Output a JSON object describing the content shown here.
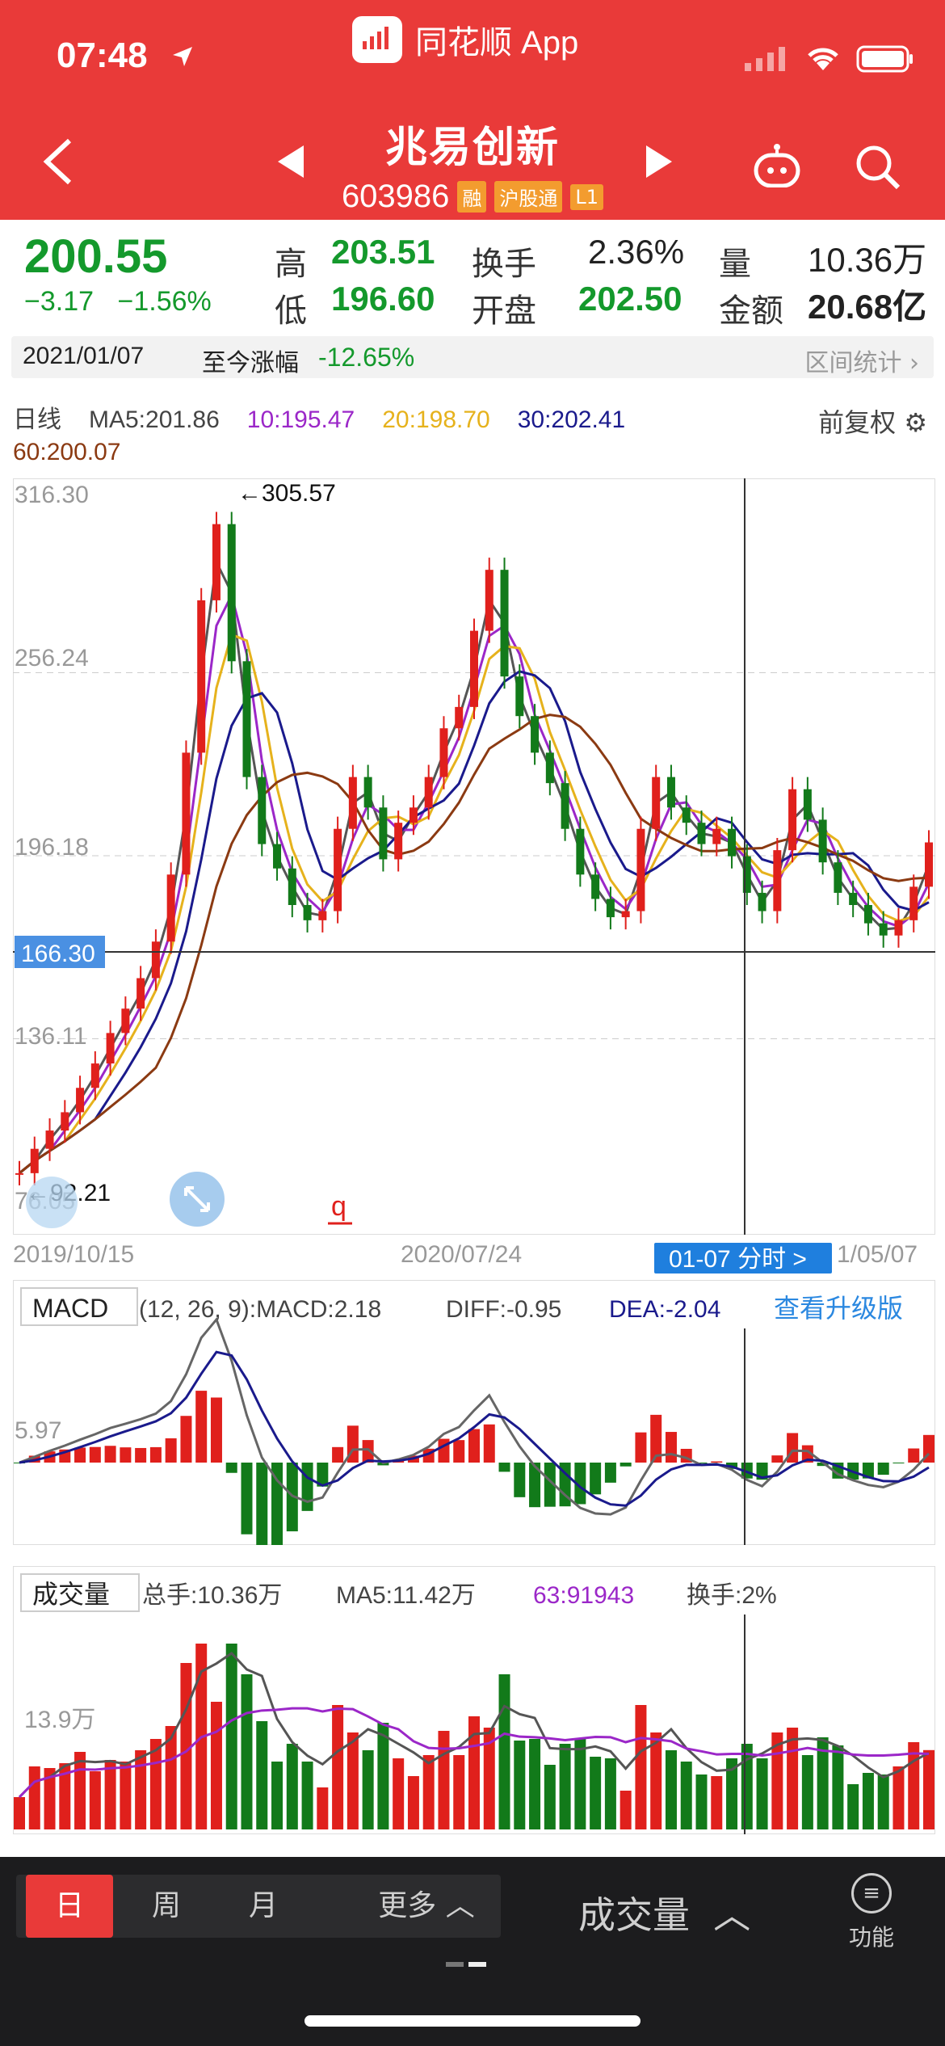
{
  "status_bar": {
    "time": "07:48"
  },
  "app": {
    "name": "同花顺 App"
  },
  "stock": {
    "name": "兆易创新",
    "code": "603986",
    "tags": [
      "融",
      "沪股通",
      "L1"
    ]
  },
  "quote": {
    "price": "200.55",
    "change": "−3.17",
    "change_pct": "−1.56%",
    "high_label": "高",
    "high": "203.51",
    "low_label": "低",
    "low": "196.60",
    "turnover_label": "换手",
    "turnover": "2.36%",
    "open_label": "开盘",
    "open": "202.50",
    "volume_label": "量",
    "volume": "10.36万",
    "amount_label": "金额",
    "amount": "20.68亿",
    "date": "2021/01/07",
    "since_label": "至今涨幅",
    "since_value": "-12.65%",
    "range_stats": "区间统计"
  },
  "legend": {
    "period": "日线",
    "ma5": "MA5:201.86",
    "ma10": "10:195.47",
    "ma20": "20:198.70",
    "ma30": "30:202.41",
    "ma60": "60:200.07",
    "adjust": "前复权"
  },
  "colors": {
    "brand": "#e93a39",
    "up": "#e0201c",
    "down": "#127a1a",
    "ma5": "#555555",
    "ma10": "#9b27c8",
    "ma20": "#e6b21c",
    "ma30": "#1a1a8c",
    "ma60": "#8b3a12"
  },
  "chart_data": [
    {
      "type": "candlestick",
      "y_ticks": [
        "316.30",
        "256.24",
        "196.18",
        "136.11",
        "76.05"
      ],
      "ylim": [
        76.05,
        316.3
      ],
      "crosshair_price": "166.30",
      "max_label": "←305.57",
      "min_label": "←92.21",
      "x_labels": [
        "2019/10/15",
        "2020/07/24",
        "1/05/07"
      ],
      "cursor_label": "01-07 分时 >",
      "series": [
        {
          "name": "MA5",
          "value": 201.86
        },
        {
          "name": "10",
          "value": 195.47
        },
        {
          "name": "20",
          "value": 198.7
        },
        {
          "name": "30",
          "value": 202.41
        },
        {
          "name": "60",
          "value": 200.07
        }
      ],
      "close": [
        92,
        100,
        106,
        112,
        120,
        128,
        138,
        146,
        156,
        168,
        190,
        230,
        280,
        305,
        260,
        222,
        200,
        192,
        180,
        175,
        178,
        205,
        222,
        212,
        195,
        207,
        212,
        222,
        238,
        245,
        270,
        290,
        255,
        242,
        230,
        220,
        205,
        190,
        182,
        176,
        178,
        205,
        222,
        212,
        207,
        200,
        205,
        196,
        184,
        178,
        198,
        218,
        208,
        194,
        184,
        180,
        174,
        170,
        175,
        186,
        200.55
      ]
    },
    {
      "type": "line",
      "title": "MACD",
      "params": "(12, 26, 9):MACD:2.18",
      "diff": "DIFF:-0.95",
      "dea": "DEA:-2.04",
      "upgrade": "查看升级版",
      "axis_label": "5.97"
    },
    {
      "type": "bar",
      "title": "成交量",
      "total": "总手:10.36万",
      "ma5": "MA5:11.42万",
      "ma63": "63:91943",
      "turnover": "换手:2%",
      "axis_label": "13.9万"
    }
  ],
  "toolbar": {
    "day": "日",
    "week": "周",
    "month": "月",
    "more": "更多",
    "volume": "成交量",
    "func": "功能"
  }
}
